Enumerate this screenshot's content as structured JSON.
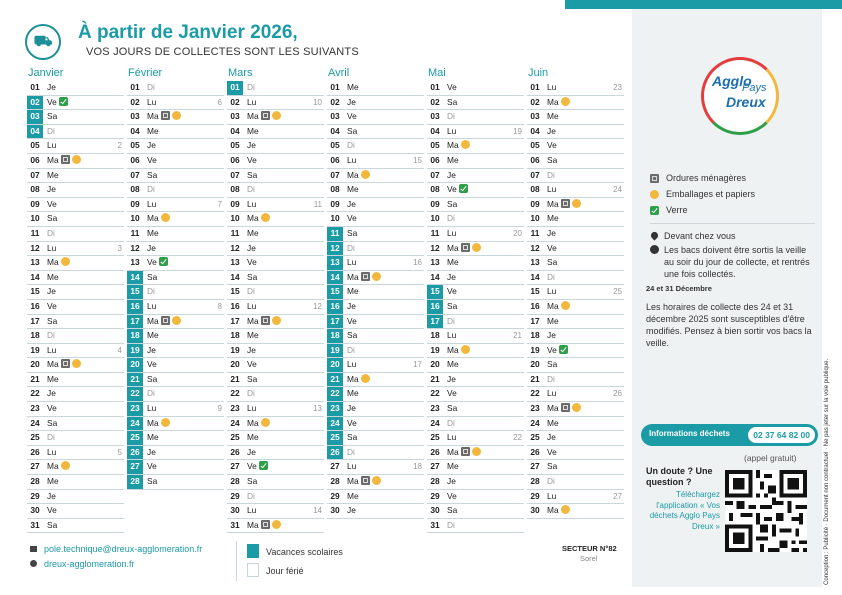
{
  "header": {
    "title": "À partir de Janvier 2026,",
    "subtitle": "VOS JOURS DE COLLECTES SONT LES SUIVANTS"
  },
  "brand": {
    "accent": "#1b9ba6",
    "om_color": "#6b6b6b",
    "emb_color": "#f2b83d",
    "verre_color": "#2e9e48"
  },
  "calendar": {
    "months": [
      {
        "name": "Janvier",
        "days": [
          {
            "n": "01",
            "d": "Je"
          },
          {
            "n": "02",
            "d": "Ve",
            "vac": true,
            "b": [
              "verre"
            ]
          },
          {
            "n": "03",
            "d": "Sa",
            "vac": true
          },
          {
            "n": "04",
            "d": "Di",
            "vac": true
          },
          {
            "n": "05",
            "d": "Lu",
            "w": "2"
          },
          {
            "n": "06",
            "d": "Ma",
            "b": [
              "om",
              "emb"
            ]
          },
          {
            "n": "07",
            "d": "Me"
          },
          {
            "n": "08",
            "d": "Je"
          },
          {
            "n": "09",
            "d": "Ve"
          },
          {
            "n": "10",
            "d": "Sa"
          },
          {
            "n": "11",
            "d": "Di"
          },
          {
            "n": "12",
            "d": "Lu",
            "w": "3"
          },
          {
            "n": "13",
            "d": "Ma",
            "b": [
              "emb"
            ]
          },
          {
            "n": "14",
            "d": "Me"
          },
          {
            "n": "15",
            "d": "Je"
          },
          {
            "n": "16",
            "d": "Ve"
          },
          {
            "n": "17",
            "d": "Sa"
          },
          {
            "n": "18",
            "d": "Di"
          },
          {
            "n": "19",
            "d": "Lu",
            "w": "4"
          },
          {
            "n": "20",
            "d": "Ma",
            "b": [
              "om",
              "emb"
            ]
          },
          {
            "n": "21",
            "d": "Me"
          },
          {
            "n": "22",
            "d": "Je"
          },
          {
            "n": "23",
            "d": "Ve"
          },
          {
            "n": "24",
            "d": "Sa"
          },
          {
            "n": "25",
            "d": "Di"
          },
          {
            "n": "26",
            "d": "Lu",
            "w": "5"
          },
          {
            "n": "27",
            "d": "Ma",
            "b": [
              "emb"
            ]
          },
          {
            "n": "28",
            "d": "Me"
          },
          {
            "n": "29",
            "d": "Je"
          },
          {
            "n": "30",
            "d": "Ve"
          },
          {
            "n": "31",
            "d": "Sa"
          }
        ]
      },
      {
        "name": "Février",
        "days": [
          {
            "n": "01",
            "d": "Di"
          },
          {
            "n": "02",
            "d": "Lu",
            "w": "6"
          },
          {
            "n": "03",
            "d": "Ma",
            "b": [
              "om",
              "emb"
            ]
          },
          {
            "n": "04",
            "d": "Me"
          },
          {
            "n": "05",
            "d": "Je"
          },
          {
            "n": "06",
            "d": "Ve"
          },
          {
            "n": "07",
            "d": "Sa"
          },
          {
            "n": "08",
            "d": "Di"
          },
          {
            "n": "09",
            "d": "Lu",
            "w": "7"
          },
          {
            "n": "10",
            "d": "Ma",
            "b": [
              "emb"
            ]
          },
          {
            "n": "11",
            "d": "Me"
          },
          {
            "n": "12",
            "d": "Je"
          },
          {
            "n": "13",
            "d": "Ve",
            "b": [
              "verre"
            ]
          },
          {
            "n": "14",
            "d": "Sa",
            "vac": true
          },
          {
            "n": "15",
            "d": "Di",
            "vac": true
          },
          {
            "n": "16",
            "d": "Lu",
            "vac": true,
            "w": "8"
          },
          {
            "n": "17",
            "d": "Ma",
            "vac": true,
            "b": [
              "om",
              "emb"
            ]
          },
          {
            "n": "18",
            "d": "Me",
            "vac": true
          },
          {
            "n": "19",
            "d": "Je",
            "vac": true
          },
          {
            "n": "20",
            "d": "Ve",
            "vac": true
          },
          {
            "n": "21",
            "d": "Sa",
            "vac": true
          },
          {
            "n": "22",
            "d": "Di",
            "vac": true
          },
          {
            "n": "23",
            "d": "Lu",
            "vac": true,
            "w": "9"
          },
          {
            "n": "24",
            "d": "Ma",
            "vac": true,
            "b": [
              "emb"
            ]
          },
          {
            "n": "25",
            "d": "Me",
            "vac": true
          },
          {
            "n": "26",
            "d": "Je",
            "vac": true
          },
          {
            "n": "27",
            "d": "Ve",
            "vac": true
          },
          {
            "n": "28",
            "d": "Sa",
            "vac": true
          }
        ]
      },
      {
        "name": "Mars",
        "days": [
          {
            "n": "01",
            "d": "Di",
            "vac": true
          },
          {
            "n": "02",
            "d": "Lu",
            "w": "10"
          },
          {
            "n": "03",
            "d": "Ma",
            "b": [
              "om",
              "emb"
            ]
          },
          {
            "n": "04",
            "d": "Me"
          },
          {
            "n": "05",
            "d": "Je"
          },
          {
            "n": "06",
            "d": "Ve"
          },
          {
            "n": "07",
            "d": "Sa"
          },
          {
            "n": "08",
            "d": "Di"
          },
          {
            "n": "09",
            "d": "Lu",
            "w": "11"
          },
          {
            "n": "10",
            "d": "Ma",
            "b": [
              "emb"
            ]
          },
          {
            "n": "11",
            "d": "Me"
          },
          {
            "n": "12",
            "d": "Je"
          },
          {
            "n": "13",
            "d": "Ve"
          },
          {
            "n": "14",
            "d": "Sa"
          },
          {
            "n": "15",
            "d": "Di"
          },
          {
            "n": "16",
            "d": "Lu",
            "w": "12"
          },
          {
            "n": "17",
            "d": "Ma",
            "b": [
              "om",
              "emb"
            ]
          },
          {
            "n": "18",
            "d": "Me"
          },
          {
            "n": "19",
            "d": "Je"
          },
          {
            "n": "20",
            "d": "Ve"
          },
          {
            "n": "21",
            "d": "Sa"
          },
          {
            "n": "22",
            "d": "Di"
          },
          {
            "n": "23",
            "d": "Lu",
            "w": "13"
          },
          {
            "n": "24",
            "d": "Ma",
            "b": [
              "emb"
            ]
          },
          {
            "n": "25",
            "d": "Me"
          },
          {
            "n": "26",
            "d": "Je"
          },
          {
            "n": "27",
            "d": "Ve",
            "b": [
              "verre"
            ]
          },
          {
            "n": "28",
            "d": "Sa"
          },
          {
            "n": "29",
            "d": "Di"
          },
          {
            "n": "30",
            "d": "Lu",
            "w": "14"
          },
          {
            "n": "31",
            "d": "Ma",
            "b": [
              "om",
              "emb"
            ]
          }
        ]
      },
      {
        "name": "Avril",
        "days": [
          {
            "n": "01",
            "d": "Me"
          },
          {
            "n": "02",
            "d": "Je"
          },
          {
            "n": "03",
            "d": "Ve"
          },
          {
            "n": "04",
            "d": "Sa"
          },
          {
            "n": "05",
            "d": "Di"
          },
          {
            "n": "06",
            "d": "Lu",
            "w": "15"
          },
          {
            "n": "07",
            "d": "Ma",
            "b": [
              "emb"
            ]
          },
          {
            "n": "08",
            "d": "Me"
          },
          {
            "n": "09",
            "d": "Je"
          },
          {
            "n": "10",
            "d": "Ve"
          },
          {
            "n": "11",
            "d": "Sa",
            "vac": true
          },
          {
            "n": "12",
            "d": "Di",
            "vac": true
          },
          {
            "n": "13",
            "d": "Lu",
            "vac": true,
            "w": "16"
          },
          {
            "n": "14",
            "d": "Ma",
            "vac": true,
            "b": [
              "om",
              "emb"
            ]
          },
          {
            "n": "15",
            "d": "Me",
            "vac": true
          },
          {
            "n": "16",
            "d": "Je",
            "vac": true
          },
          {
            "n": "17",
            "d": "Ve",
            "vac": true
          },
          {
            "n": "18",
            "d": "Sa",
            "vac": true
          },
          {
            "n": "19",
            "d": "Di",
            "vac": true
          },
          {
            "n": "20",
            "d": "Lu",
            "vac": true,
            "w": "17"
          },
          {
            "n": "21",
            "d": "Ma",
            "vac": true,
            "b": [
              "emb"
            ]
          },
          {
            "n": "22",
            "d": "Me",
            "vac": true
          },
          {
            "n": "23",
            "d": "Je",
            "vac": true
          },
          {
            "n": "24",
            "d": "Ve",
            "vac": true
          },
          {
            "n": "25",
            "d": "Sa",
            "vac": true
          },
          {
            "n": "26",
            "d": "Di",
            "vac": true
          },
          {
            "n": "27",
            "d": "Lu",
            "w": "18"
          },
          {
            "n": "28",
            "d": "Ma",
            "b": [
              "om",
              "emb"
            ]
          },
          {
            "n": "29",
            "d": "Me"
          },
          {
            "n": "30",
            "d": "Je"
          }
        ]
      },
      {
        "name": "Mai",
        "days": [
          {
            "n": "01",
            "d": "Ve"
          },
          {
            "n": "02",
            "d": "Sa"
          },
          {
            "n": "03",
            "d": "Di"
          },
          {
            "n": "04",
            "d": "Lu",
            "w": "19"
          },
          {
            "n": "05",
            "d": "Ma",
            "b": [
              "emb"
            ]
          },
          {
            "n": "06",
            "d": "Me"
          },
          {
            "n": "07",
            "d": "Je"
          },
          {
            "n": "08",
            "d": "Ve",
            "b": [
              "verre"
            ]
          },
          {
            "n": "09",
            "d": "Sa"
          },
          {
            "n": "10",
            "d": "Di"
          },
          {
            "n": "11",
            "d": "Lu",
            "w": "20"
          },
          {
            "n": "12",
            "d": "Ma",
            "b": [
              "om",
              "emb"
            ]
          },
          {
            "n": "13",
            "d": "Me"
          },
          {
            "n": "14",
            "d": "Je"
          },
          {
            "n": "15",
            "d": "Ve",
            "vac": true
          },
          {
            "n": "16",
            "d": "Sa",
            "vac": true
          },
          {
            "n": "17",
            "d": "Di",
            "vac": true
          },
          {
            "n": "18",
            "d": "Lu",
            "w": "21"
          },
          {
            "n": "19",
            "d": "Ma",
            "b": [
              "emb"
            ]
          },
          {
            "n": "20",
            "d": "Me"
          },
          {
            "n": "21",
            "d": "Je"
          },
          {
            "n": "22",
            "d": "Ve"
          },
          {
            "n": "23",
            "d": "Sa"
          },
          {
            "n": "24",
            "d": "Di"
          },
          {
            "n": "25",
            "d": "Lu",
            "w": "22"
          },
          {
            "n": "26",
            "d": "Ma",
            "b": [
              "om",
              "emb"
            ]
          },
          {
            "n": "27",
            "d": "Me"
          },
          {
            "n": "28",
            "d": "Je"
          },
          {
            "n": "29",
            "d": "Ve"
          },
          {
            "n": "30",
            "d": "Sa"
          },
          {
            "n": "31",
            "d": "Di"
          }
        ]
      },
      {
        "name": "Juin",
        "days": [
          {
            "n": "01",
            "d": "Lu",
            "w": "23"
          },
          {
            "n": "02",
            "d": "Ma",
            "b": [
              "emb"
            ]
          },
          {
            "n": "03",
            "d": "Me"
          },
          {
            "n": "04",
            "d": "Je"
          },
          {
            "n": "05",
            "d": "Ve"
          },
          {
            "n": "06",
            "d": "Sa"
          },
          {
            "n": "07",
            "d": "Di"
          },
          {
            "n": "08",
            "d": "Lu",
            "w": "24"
          },
          {
            "n": "09",
            "d": "Ma",
            "b": [
              "om",
              "emb"
            ]
          },
          {
            "n": "10",
            "d": "Me"
          },
          {
            "n": "11",
            "d": "Je"
          },
          {
            "n": "12",
            "d": "Ve"
          },
          {
            "n": "13",
            "d": "Sa"
          },
          {
            "n": "14",
            "d": "Di"
          },
          {
            "n": "15",
            "d": "Lu",
            "w": "25"
          },
          {
            "n": "16",
            "d": "Ma",
            "b": [
              "emb"
            ]
          },
          {
            "n": "17",
            "d": "Me"
          },
          {
            "n": "18",
            "d": "Je"
          },
          {
            "n": "19",
            "d": "Ve",
            "b": [
              "verre"
            ]
          },
          {
            "n": "20",
            "d": "Sa"
          },
          {
            "n": "21",
            "d": "Di"
          },
          {
            "n": "22",
            "d": "Lu",
            "w": "26"
          },
          {
            "n": "23",
            "d": "Ma",
            "b": [
              "om",
              "emb"
            ]
          },
          {
            "n": "24",
            "d": "Me"
          },
          {
            "n": "25",
            "d": "Je"
          },
          {
            "n": "26",
            "d": "Ve"
          },
          {
            "n": "27",
            "d": "Sa"
          },
          {
            "n": "28",
            "d": "Di"
          },
          {
            "n": "29",
            "d": "Lu",
            "w": "27"
          },
          {
            "n": "30",
            "d": "Ma",
            "b": [
              "emb"
            ]
          }
        ]
      }
    ]
  },
  "logo": {
    "line1": "Agglo",
    "line2": "Pays",
    "line3": "Dreux"
  },
  "legend": {
    "om": "Ordures ménagères",
    "emb": "Emballages et papiers",
    "verre": "Verre",
    "note1": "Devant chez vous",
    "note2": "Les bacs doivent être sortis la veille au soir du jour de collecte, et rentrés une fois collectés."
  },
  "notice": {
    "head": "24 et 31 Décembre",
    "body": "Les horaires de collecte des 24 et 31 décembre 2025 sont susceptibles d'être modifiés. Pensez à bien sortir vos bacs la veille."
  },
  "info": {
    "label": "Informations déchets",
    "phone": "02 37 64 82 00",
    "free": "(appel gratuit)",
    "question": "Un doute ? Une question ?",
    "app": "Téléchargez l'application « Vos déchets Agglo Pays Dreux »"
  },
  "footer": {
    "email": "pole.technique@dreux-agglomeration.fr",
    "website": "dreux-agglomeration.fr",
    "vacances": "Vacances scolaires",
    "ferie": "Jour férié",
    "sector": "SECTEUR N°82",
    "commune": "Sorel"
  },
  "vertical_text": "Conception : Publicité · Document non contractuel · Ne pas jeter sur la voie publique."
}
